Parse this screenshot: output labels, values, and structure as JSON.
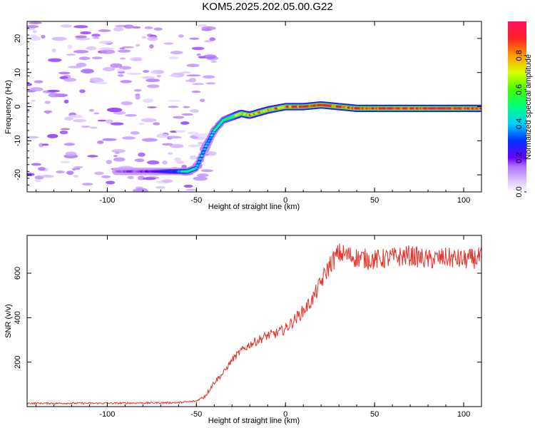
{
  "title": "KOM5.2025.202.05.00.G22",
  "colors": {
    "snr_line": "#e8322a",
    "frame": "#000000"
  },
  "chart_data": [
    {
      "type": "heatmap",
      "xlabel": "Height of straight line (km)",
      "ylabel": "Frequency (Hz)",
      "xlim": [
        -145,
        110
      ],
      "ylim": [
        -25,
        25
      ],
      "x_ticks": [
        -100,
        -50,
        0,
        50,
        100
      ],
      "y_ticks": [
        -20,
        -10,
        0,
        10,
        20
      ],
      "colorbar": {
        "label": "Normalized spectral amplitude",
        "range": [
          0,
          1
        ],
        "ticks": [
          "0.0",
          "0.2",
          "0.4",
          "0.6",
          "0.8"
        ]
      },
      "ridge_frequency_hz": {
        "x": [
          -95,
          -75,
          -60,
          -55,
          -50,
          -45,
          -40,
          -35,
          -30,
          -25,
          -20,
          -10,
          0,
          10,
          20,
          30,
          40,
          60,
          80,
          100,
          110
        ],
        "y": [
          -19,
          -19,
          -19,
          -19,
          -18,
          -12,
          -7,
          -4,
          -3,
          -2,
          -2.5,
          -1,
          0,
          0,
          0.5,
          0,
          -0.5,
          -0.5,
          -0.5,
          -0.5,
          -0.5
        ],
        "amplitude": [
          0.15,
          0.2,
          0.35,
          0.5,
          0.45,
          0.4,
          0.45,
          0.5,
          0.6,
          0.7,
          0.8,
          0.75,
          0.85,
          0.9,
          0.95,
          0.85,
          0.9,
          0.95,
          0.95,
          0.9,
          0.85
        ]
      }
    },
    {
      "type": "line",
      "xlabel": "Height of straight line (km)",
      "ylabel": "SNR (v/v)",
      "xlim": [
        -145,
        110
      ],
      "ylim": [
        0,
        770
      ],
      "x_ticks": [
        -100,
        -50,
        0,
        50,
        100
      ],
      "y_ticks": [
        200,
        400,
        600
      ],
      "series": [
        {
          "x": [
            -145,
            -100,
            -60,
            -50,
            -45,
            -40,
            -35,
            -30,
            -25,
            -20,
            -15,
            -10,
            -5,
            0,
            5,
            10,
            15,
            20,
            25,
            30,
            40,
            50,
            60,
            70,
            80,
            90,
            100,
            110
          ],
          "y": [
            15,
            15,
            18,
            25,
            50,
            110,
            150,
            210,
            250,
            280,
            300,
            320,
            330,
            350,
            390,
            430,
            480,
            560,
            640,
            690,
            670,
            660,
            670,
            680,
            660,
            670,
            660,
            670
          ]
        }
      ]
    }
  ]
}
